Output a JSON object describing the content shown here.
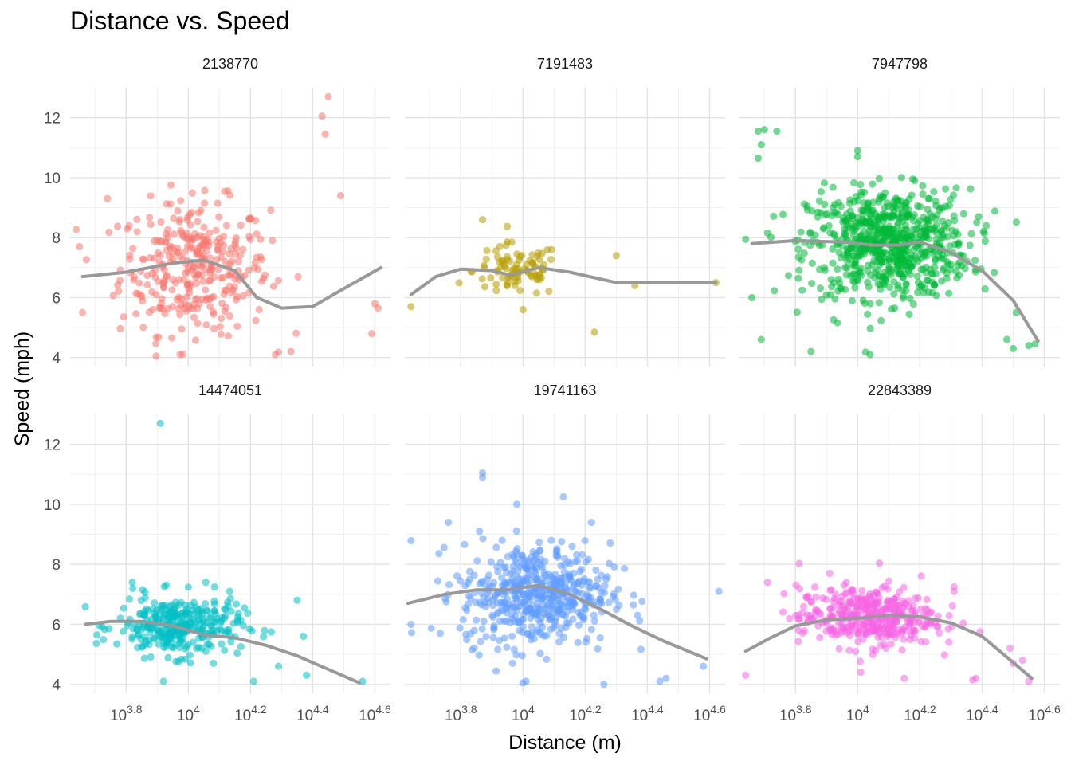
{
  "chart_data": {
    "type": "scatter",
    "title": "Distance vs. Speed",
    "xlabel": "Distance (m)",
    "ylabel": "Speed (mph)",
    "x_scale": "log10",
    "x_tick_labels": [
      "10^3.8",
      "10^4",
      "10^4.2",
      "10^4.4",
      "10^4.6"
    ],
    "x_tick_values": [
      3.8,
      4.0,
      4.2,
      4.4,
      4.6
    ],
    "xlim_log10": [
      3.62,
      4.65
    ],
    "y_ticks": [
      4,
      6,
      8,
      10,
      12
    ],
    "ylim": [
      3.7,
      13.0
    ],
    "grid": true,
    "facets": [
      {
        "name": "2138770",
        "color": "#F8766D",
        "n_points": 330,
        "center_log10": 4.02,
        "spread_log10": 0.12,
        "center_speed": 7.0,
        "spread_speed": 1.1,
        "extra_points": [
          [
            4.45,
            12.7
          ],
          [
            4.43,
            12.05
          ],
          [
            4.44,
            11.45
          ],
          [
            4.49,
            9.4
          ],
          [
            3.74,
            9.3
          ],
          [
            4.6,
            5.8
          ],
          [
            4.61,
            5.65
          ],
          [
            4.59,
            4.8
          ],
          [
            3.65,
            7.7
          ],
          [
            3.66,
            5.5
          ],
          [
            4.28,
            4.1
          ],
          [
            4.33,
            4.2
          ]
        ],
        "trend": [
          [
            3.66,
            6.7
          ],
          [
            3.8,
            6.85
          ],
          [
            3.95,
            7.15
          ],
          [
            4.05,
            7.25
          ],
          [
            4.15,
            6.9
          ],
          [
            4.22,
            6.0
          ],
          [
            4.3,
            5.65
          ],
          [
            4.4,
            5.7
          ],
          [
            4.5,
            6.3
          ],
          [
            4.62,
            7.0
          ]
        ]
      },
      {
        "name": "7191483",
        "color": "#B79F00",
        "n_points": 90,
        "center_log10": 3.98,
        "spread_log10": 0.07,
        "center_speed": 6.9,
        "spread_speed": 0.45,
        "extra_points": [
          [
            3.87,
            8.6
          ],
          [
            4.23,
            4.85
          ],
          [
            3.64,
            5.7
          ],
          [
            4.62,
            6.5
          ],
          [
            4.3,
            7.4
          ],
          [
            4.36,
            6.4
          ],
          [
            4.0,
            5.6
          ]
        ],
        "trend": [
          [
            3.64,
            6.1
          ],
          [
            3.72,
            6.7
          ],
          [
            3.8,
            6.95
          ],
          [
            3.9,
            6.9
          ],
          [
            3.96,
            6.75
          ],
          [
            4.05,
            7.0
          ],
          [
            4.15,
            6.85
          ],
          [
            4.3,
            6.5
          ],
          [
            4.45,
            6.5
          ],
          [
            4.62,
            6.5
          ]
        ]
      },
      {
        "name": "7947798",
        "color": "#00BA38",
        "n_points": 720,
        "center_log10": 4.1,
        "spread_log10": 0.13,
        "center_speed": 7.8,
        "spread_speed": 0.9,
        "extra_points": [
          [
            3.68,
            11.55
          ],
          [
            3.7,
            11.6
          ],
          [
            3.74,
            11.55
          ],
          [
            3.69,
            11.1
          ],
          [
            3.68,
            10.65
          ],
          [
            4.0,
            10.9
          ],
          [
            4.0,
            10.7
          ],
          [
            3.69,
            4.6
          ],
          [
            3.85,
            4.2
          ],
          [
            4.04,
            4.1
          ],
          [
            4.5,
            4.3
          ],
          [
            4.55,
            4.4
          ],
          [
            4.57,
            4.45
          ],
          [
            4.48,
            4.6
          ],
          [
            4.51,
            5.5
          ],
          [
            3.66,
            6.0
          ]
        ],
        "trend": [
          [
            3.66,
            7.8
          ],
          [
            3.8,
            7.9
          ],
          [
            3.95,
            7.85
          ],
          [
            4.05,
            7.75
          ],
          [
            4.13,
            7.75
          ],
          [
            4.2,
            7.85
          ],
          [
            4.3,
            7.5
          ],
          [
            4.4,
            6.9
          ],
          [
            4.5,
            5.9
          ],
          [
            4.58,
            4.55
          ]
        ]
      },
      {
        "name": "14474051",
        "color": "#00BFC4",
        "n_points": 320,
        "center_log10": 3.97,
        "spread_log10": 0.1,
        "center_speed": 5.95,
        "spread_speed": 0.5,
        "extra_points": [
          [
            3.91,
            12.7
          ],
          [
            3.92,
            4.1
          ],
          [
            4.56,
            4.1
          ],
          [
            4.35,
            6.8
          ],
          [
            4.37,
            5.6
          ],
          [
            4.38,
            4.3
          ],
          [
            4.29,
            4.6
          ],
          [
            4.21,
            4.1
          ],
          [
            3.82,
            7.4
          ]
        ],
        "trend": [
          [
            3.67,
            6.0
          ],
          [
            3.75,
            6.1
          ],
          [
            3.85,
            6.1
          ],
          [
            3.95,
            5.95
          ],
          [
            4.05,
            5.65
          ],
          [
            4.15,
            5.55
          ],
          [
            4.25,
            5.3
          ],
          [
            4.35,
            4.95
          ],
          [
            4.45,
            4.5
          ],
          [
            4.55,
            4.05
          ]
        ]
      },
      {
        "name": "19741163",
        "color": "#619CFF",
        "n_points": 520,
        "center_log10": 4.04,
        "spread_log10": 0.12,
        "center_speed": 7.0,
        "spread_speed": 0.85,
        "extra_points": [
          [
            3.87,
            11.05
          ],
          [
            3.87,
            10.9
          ],
          [
            4.13,
            10.25
          ],
          [
            3.98,
            10.0
          ],
          [
            3.76,
            9.4
          ],
          [
            4.22,
            9.4
          ],
          [
            3.86,
            9.1
          ],
          [
            3.64,
            6.0
          ],
          [
            4.0,
            4.05
          ],
          [
            4.01,
            4.1
          ],
          [
            4.26,
            4.0
          ],
          [
            4.46,
            4.2
          ],
          [
            4.44,
            4.1
          ],
          [
            4.63,
            7.1
          ],
          [
            4.58,
            4.6
          ]
        ],
        "trend": [
          [
            3.63,
            6.7
          ],
          [
            3.75,
            7.0
          ],
          [
            3.85,
            7.15
          ],
          [
            3.95,
            7.15
          ],
          [
            4.05,
            7.3
          ],
          [
            4.15,
            7.0
          ],
          [
            4.25,
            6.5
          ],
          [
            4.35,
            5.95
          ],
          [
            4.45,
            5.45
          ],
          [
            4.59,
            4.85
          ]
        ]
      },
      {
        "name": "22843389",
        "color": "#F564E3",
        "n_points": 380,
        "center_log10": 4.03,
        "spread_log10": 0.11,
        "center_speed": 6.25,
        "spread_speed": 0.5,
        "extra_points": [
          [
            3.64,
            4.3
          ],
          [
            3.71,
            7.4
          ],
          [
            3.91,
            7.7
          ],
          [
            4.31,
            7.25
          ],
          [
            4.31,
            7.1
          ],
          [
            4.37,
            4.15
          ],
          [
            4.38,
            4.2
          ],
          [
            4.55,
            4.1
          ],
          [
            4.49,
            5.2
          ],
          [
            4.5,
            4.7
          ],
          [
            4.53,
            4.8
          ],
          [
            4.15,
            4.2
          ],
          [
            4.01,
            4.4
          ]
        ],
        "trend": [
          [
            3.64,
            5.1
          ],
          [
            3.72,
            5.55
          ],
          [
            3.8,
            5.95
          ],
          [
            3.9,
            6.15
          ],
          [
            4.0,
            6.2
          ],
          [
            4.1,
            6.3
          ],
          [
            4.2,
            6.25
          ],
          [
            4.3,
            6.05
          ],
          [
            4.4,
            5.6
          ],
          [
            4.56,
            4.2
          ]
        ]
      }
    ]
  }
}
